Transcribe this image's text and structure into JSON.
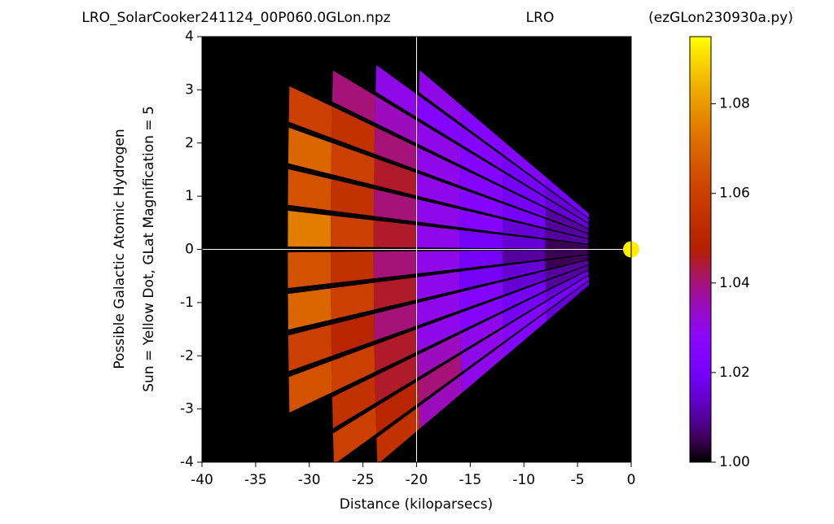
{
  "chart_data": {
    "type": "polar-heatmap",
    "title_left": "LRO_SolarCooker241124_00P060.0GLon.npz",
    "title_center": "LRO",
    "title_right": "(ezGLon230930a.py)",
    "xlabel": "Distance (kiloparsecs)",
    "ylabel_lines": [
      "Possible Galactic Atomic Hydrogen",
      "Sun = Yellow Dot, GLat Magnification = 5"
    ],
    "xlim": [
      -40,
      0
    ],
    "ylim": [
      -4,
      4
    ],
    "xticks": [
      -40,
      -35,
      -30,
      -25,
      -20,
      -15,
      -10,
      -5,
      0
    ],
    "yticks": [
      -4,
      -3,
      -2,
      -1,
      0,
      1,
      2,
      3,
      4
    ],
    "crosshair": {
      "x": -20,
      "y": 0
    },
    "sun": {
      "x": 0,
      "y": 0,
      "color": "#ffee00"
    },
    "colormap": "gnuplot",
    "clim": [
      1.0,
      1.095
    ],
    "cticks": [
      {
        "value": 1.0,
        "label": "1.00"
      },
      1.02,
      1.04,
      1.06,
      1.08
    ],
    "angles_deg": [
      -9.1,
      -7.7,
      -6.3,
      -4.9,
      -3.5,
      -2.1,
      -0.7,
      0.7,
      2.1,
      3.5,
      4.9,
      6.3,
      7.7,
      9.1
    ],
    "angle_width_deg": 1.2,
    "radii": [
      0,
      4,
      8,
      12,
      16,
      20,
      24,
      28,
      32
    ],
    "values": [
      [
        1.0,
        1.015,
        1.025,
        1.03,
        1.035,
        1.055,
        null,
        null
      ],
      [
        1.0,
        1.02,
        1.025,
        1.03,
        1.04,
        1.05,
        1.06,
        null
      ],
      [
        1.0,
        1.015,
        1.02,
        1.03,
        1.035,
        1.045,
        1.055,
        null
      ],
      [
        1.0,
        1.01,
        1.02,
        1.025,
        1.03,
        1.045,
        1.06,
        1.065
      ],
      [
        1.0,
        1.01,
        1.015,
        1.025,
        1.03,
        1.04,
        1.05,
        1.06
      ],
      [
        1.0,
        1.005,
        1.015,
        1.02,
        1.03,
        1.045,
        1.06,
        1.07
      ],
      [
        1.0,
        1.005,
        1.01,
        1.02,
        1.03,
        1.04,
        1.055,
        1.065
      ],
      [
        1.0,
        1.005,
        1.015,
        1.02,
        1.03,
        1.045,
        1.06,
        1.075
      ],
      [
        1.0,
        1.01,
        1.015,
        1.025,
        1.03,
        1.04,
        1.055,
        1.065
      ],
      [
        1.0,
        1.01,
        1.02,
        1.025,
        1.03,
        1.045,
        1.06,
        1.07
      ],
      [
        1.0,
        1.01,
        1.02,
        1.025,
        1.03,
        1.04,
        1.055,
        1.06
      ],
      [
        1.0,
        1.015,
        1.02,
        1.025,
        1.03,
        1.035,
        1.04,
        null
      ],
      [
        1.0,
        1.015,
        1.02,
        1.025,
        1.025,
        1.03,
        null,
        null
      ],
      [
        1.0,
        1.02,
        1.025,
        1.025,
        1.03,
        null,
        null,
        null
      ]
    ]
  }
}
